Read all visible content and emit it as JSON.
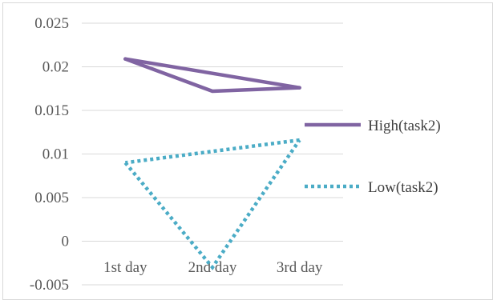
{
  "chart_data": {
    "type": "line",
    "title": "",
    "xlabel": "",
    "ylabel": "",
    "categories": [
      "1st day",
      "2nd day",
      "3rd day"
    ],
    "ylim": [
      -0.005,
      0.025
    ],
    "yticks": [
      "0.025",
      "0.02",
      "0.015",
      "0.01",
      "0.005",
      "0",
      "-0.005"
    ],
    "grid": true,
    "legend_position": "right",
    "series": [
      {
        "name": "High(task2)",
        "values": [
          0.0209,
          0.0172,
          0.0176
        ],
        "color": "#8064a2",
        "style": "solid"
      },
      {
        "name": "Low(task2)",
        "values": [
          0.009,
          -0.003,
          0.0116
        ],
        "color": "#4bacc6",
        "style": "dotted"
      }
    ]
  }
}
